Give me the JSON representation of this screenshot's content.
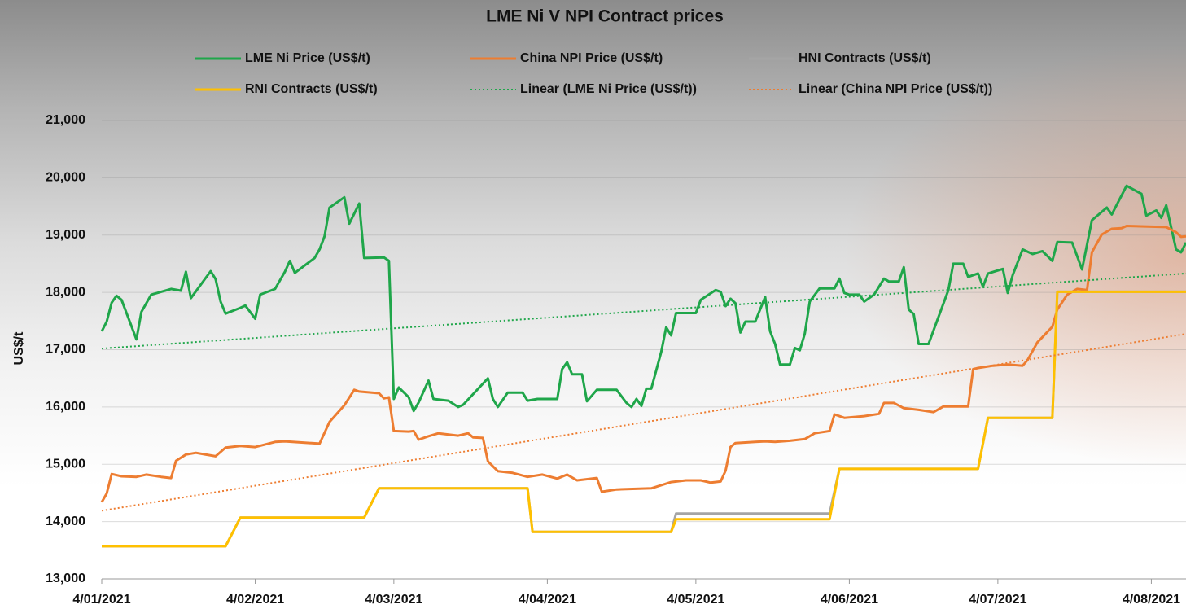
{
  "chart_data": {
    "type": "line",
    "title": "LME Ni V NPI Contract prices",
    "y_label": "US$/t",
    "xlim": [
      "4/01/2021",
      "11/08/2021"
    ],
    "xticks": [
      "4/01/2021",
      "4/02/2021",
      "4/03/2021",
      "4/04/2021",
      "4/05/2021",
      "4/06/2021",
      "4/07/2021",
      "4/08/2021"
    ],
    "ylim": [
      13000,
      21000
    ],
    "yticks": [
      {
        "value": 13000,
        "label": "13,000"
      },
      {
        "value": 14000,
        "label": "14,000"
      },
      {
        "value": 15000,
        "label": "15,000"
      },
      {
        "value": 16000,
        "label": "16,000"
      },
      {
        "value": 17000,
        "label": "17,000"
      },
      {
        "value": 18000,
        "label": "18,000"
      },
      {
        "value": 19000,
        "label": "19,000"
      },
      {
        "value": 20000,
        "label": "20,000"
      },
      {
        "value": 21000,
        "label": "21,000"
      }
    ],
    "grid": true,
    "series": [
      {
        "name": "LME Ni Price (US$/t)",
        "color": "#1fa64a",
        "style": "solid",
        "x": [
          "4/01/2021",
          "5/01/2021",
          "6/01/2021",
          "7/01/2021",
          "8/01/2021",
          "11/01/2021",
          "12/01/2021",
          "14/01/2021",
          "18/01/2021",
          "20/01/2021",
          "21/01/2021",
          "22/01/2021",
          "26/01/2021",
          "27/01/2021",
          "28/01/2021",
          "29/01/2021",
          "1/02/2021",
          "2/02/2021",
          "4/02/2021",
          "5/02/2021",
          "8/02/2021",
          "10/02/2021",
          "11/02/2021",
          "12/02/2021",
          "16/02/2021",
          "17/02/2021",
          "18/02/2021",
          "19/02/2021",
          "22/02/2021",
          "23/02/2021",
          "25/02/2021",
          "26/02/2021",
          "2/03/2021",
          "3/03/2021",
          "4/03/2021",
          "5/03/2021",
          "7/03/2021",
          "8/03/2021",
          "9/03/2021",
          "11/03/2021",
          "12/03/2021",
          "15/03/2021",
          "17/03/2021",
          "18/03/2021",
          "23/03/2021",
          "24/03/2021",
          "25/03/2021",
          "27/03/2021",
          "30/03/2021",
          "31/03/2021",
          "2/04/2021",
          "6/04/2021",
          "7/04/2021",
          "8/04/2021",
          "9/04/2021",
          "11/04/2021",
          "12/04/2021",
          "14/04/2021",
          "18/04/2021",
          "20/04/2021",
          "21/04/2021",
          "22/04/2021",
          "23/04/2021",
          "24/04/2021",
          "25/04/2021",
          "27/04/2021",
          "28/04/2021",
          "29/04/2021",
          "30/04/2021",
          "4/05/2021",
          "5/05/2021",
          "8/05/2021",
          "9/05/2021",
          "10/05/2021",
          "11/05/2021",
          "12/05/2021",
          "13/05/2021",
          "14/05/2021",
          "16/05/2021",
          "18/05/2021",
          "19/05/2021",
          "20/05/2021",
          "21/05/2021",
          "23/05/2021",
          "24/05/2021",
          "25/05/2021",
          "26/05/2021",
          "27/05/2021",
          "29/05/2021",
          "1/06/2021",
          "2/06/2021",
          "3/06/2021",
          "4/06/2021",
          "6/06/2021",
          "7/06/2021",
          "9/06/2021",
          "11/06/2021",
          "12/06/2021",
          "14/06/2021",
          "15/06/2021",
          "16/06/2021",
          "17/06/2021",
          "18/06/2021",
          "20/06/2021",
          "24/06/2021",
          "25/06/2021",
          "27/06/2021",
          "28/06/2021",
          "30/06/2021",
          "1/07/2021",
          "2/07/2021",
          "5/07/2021",
          "6/07/2021",
          "7/07/2021",
          "9/07/2021",
          "11/07/2021",
          "13/07/2021",
          "15/07/2021",
          "16/07/2021",
          "19/07/2021",
          "21/07/2021",
          "23/07/2021",
          "26/07/2021",
          "27/07/2021",
          "30/07/2021",
          "2/08/2021",
          "3/08/2021",
          "5/08/2021",
          "6/08/2021",
          "7/08/2021",
          "9/08/2021",
          "10/08/2021",
          "11/08/2021"
        ],
        "values": [
          17320,
          17490,
          17820,
          17940,
          17870,
          17180,
          17660,
          17960,
          18060,
          18030,
          18360,
          17900,
          18370,
          18230,
          17840,
          17630,
          17730,
          17770,
          17540,
          17960,
          18060,
          18360,
          18550,
          18340,
          18600,
          18750,
          18980,
          19480,
          19660,
          19200,
          19550,
          18600,
          18610,
          18550,
          16140,
          16340,
          16170,
          15930,
          16080,
          16460,
          16140,
          16110,
          16000,
          16040,
          16500,
          16140,
          16000,
          16250,
          16250,
          16110,
          16140,
          16140,
          16660,
          16780,
          16570,
          16570,
          16100,
          16300,
          16300,
          16070,
          16000,
          16140,
          16020,
          16320,
          16320,
          16960,
          17390,
          17250,
          17640,
          17640,
          17870,
          18040,
          18010,
          17760,
          17890,
          17810,
          17300,
          17490,
          17490,
          17920,
          17320,
          17100,
          16740,
          16740,
          17030,
          16990,
          17280,
          17840,
          18070,
          18070,
          18240,
          17990,
          17960,
          17960,
          17840,
          17960,
          18240,
          18190,
          18190,
          18440,
          17700,
          17620,
          17100,
          17100,
          18040,
          18500,
          18500,
          18270,
          18330,
          18100,
          18330,
          18410,
          17990,
          18300,
          18750,
          18670,
          18720,
          18550,
          18880,
          18870,
          18400,
          19260,
          19480,
          19360,
          19860,
          19720,
          19340,
          19430,
          19300,
          19520,
          18750,
          18700,
          18870
        ]
      },
      {
        "name": "China NPI Price (US$/t)",
        "color": "#ed7d31",
        "style": "solid",
        "x": [
          "4/01/2021",
          "5/01/2021",
          "6/01/2021",
          "8/01/2021",
          "11/01/2021",
          "13/01/2021",
          "16/01/2021",
          "18/01/2021",
          "19/01/2021",
          "21/01/2021",
          "23/01/2021",
          "27/01/2021",
          "29/01/2021",
          "1/02/2021",
          "4/02/2021",
          "8/02/2021",
          "10/02/2021",
          "17/02/2021",
          "19/02/2021",
          "22/02/2021",
          "24/02/2021",
          "25/02/2021",
          "1/03/2021",
          "2/03/2021",
          "3/03/2021",
          "4/03/2021",
          "7/03/2021",
          "8/03/2021",
          "9/03/2021",
          "11/03/2021",
          "13/03/2021",
          "17/03/2021",
          "19/03/2021",
          "20/03/2021",
          "22/03/2021",
          "23/03/2021",
          "25/03/2021",
          "28/03/2021",
          "31/03/2021",
          "3/04/2021",
          "6/04/2021",
          "8/04/2021",
          "10/04/2021",
          "14/04/2021",
          "15/04/2021",
          "18/04/2021",
          "25/04/2021",
          "29/04/2021",
          "2/05/2021",
          "5/05/2021",
          "7/05/2021",
          "9/05/2021",
          "10/05/2021",
          "11/05/2021",
          "12/05/2021",
          "16/05/2021",
          "18/05/2021",
          "20/05/2021",
          "23/05/2021",
          "26/05/2021",
          "28/05/2021",
          "31/05/2021",
          "1/06/2021",
          "3/06/2021",
          "7/06/2021",
          "10/06/2021",
          "11/06/2021",
          "13/06/2021",
          "15/06/2021",
          "18/06/2021",
          "21/06/2021",
          "23/06/2021",
          "28/06/2021",
          "29/06/2021",
          "30/06/2021",
          "3/07/2021",
          "6/07/2021",
          "9/07/2021",
          "10/07/2021",
          "12/07/2021",
          "15/07/2021",
          "16/07/2021",
          "18/07/2021",
          "20/07/2021",
          "22/07/2021",
          "23/07/2021",
          "25/07/2021",
          "27/07/2021",
          "29/07/2021",
          "30/07/2021",
          "7/08/2021",
          "9/08/2021",
          "10/08/2021",
          "11/08/2021"
        ],
        "values": [
          14340,
          14490,
          14830,
          14790,
          14780,
          14820,
          14780,
          14760,
          15060,
          15170,
          15200,
          15140,
          15290,
          15320,
          15300,
          15390,
          15400,
          15360,
          15740,
          16030,
          16300,
          16270,
          16240,
          16150,
          16170,
          15580,
          15570,
          15580,
          15430,
          15490,
          15540,
          15500,
          15540,
          15470,
          15460,
          15050,
          14880,
          14850,
          14780,
          14820,
          14750,
          14820,
          14720,
          14760,
          14520,
          14560,
          14580,
          14690,
          14720,
          14720,
          14680,
          14700,
          14890,
          15300,
          15370,
          15390,
          15400,
          15390,
          15410,
          15440,
          15540,
          15580,
          15870,
          15810,
          15840,
          15880,
          16070,
          16070,
          15980,
          15950,
          15910,
          16010,
          16010,
          16660,
          16680,
          16720,
          16740,
          16720,
          16820,
          17130,
          17400,
          17700,
          17960,
          18060,
          18040,
          18700,
          19010,
          19110,
          19120,
          19160,
          19140,
          19050,
          18970,
          18980
        ]
      },
      {
        "name": "HNI Contracts (US$/t)",
        "color": "#a5a5a5",
        "style": "solid",
        "x": [
          "4/01/2021",
          "29/01/2021",
          "1/02/2021",
          "26/02/2021",
          "1/03/2021",
          "31/03/2021",
          "1/04/2021",
          "29/04/2021",
          "30/04/2021",
          "31/05/2021",
          "2/06/2021",
          "30/06/2021",
          "2/07/2021",
          "15/07/2021",
          "16/07/2021",
          "11/08/2021"
        ],
        "values": [
          13570,
          13570,
          14070,
          14070,
          14580,
          14580,
          13820,
          13820,
          14140,
          14140,
          14920,
          14920,
          15810,
          15810,
          18010,
          18010
        ]
      },
      {
        "name": "RNI Contracts (US$/t)",
        "color": "#ffc000",
        "style": "solid",
        "x": [
          "4/01/2021",
          "29/01/2021",
          "1/02/2021",
          "26/02/2021",
          "1/03/2021",
          "31/03/2021",
          "1/04/2021",
          "29/04/2021",
          "30/04/2021",
          "31/05/2021",
          "2/06/2021",
          "30/06/2021",
          "2/07/2021",
          "15/07/2021",
          "16/07/2021",
          "11/08/2021"
        ],
        "values": [
          13570,
          13570,
          14070,
          14070,
          14580,
          14580,
          13820,
          13820,
          14040,
          14040,
          14920,
          14920,
          15810,
          15810,
          18010,
          18010
        ]
      },
      {
        "name": "Linear (LME Ni Price (US$/t))",
        "color": "#1fa64a",
        "style": "dotted",
        "x": [
          "4/01/2021",
          "11/08/2021"
        ],
        "values": [
          17020,
          18330
        ]
      },
      {
        "name": "Linear (China NPI Price (US$/t))",
        "color": "#ed7d31",
        "style": "dotted",
        "x": [
          "4/01/2021",
          "11/08/2021"
        ],
        "values": [
          14190,
          17275
        ]
      }
    ]
  }
}
